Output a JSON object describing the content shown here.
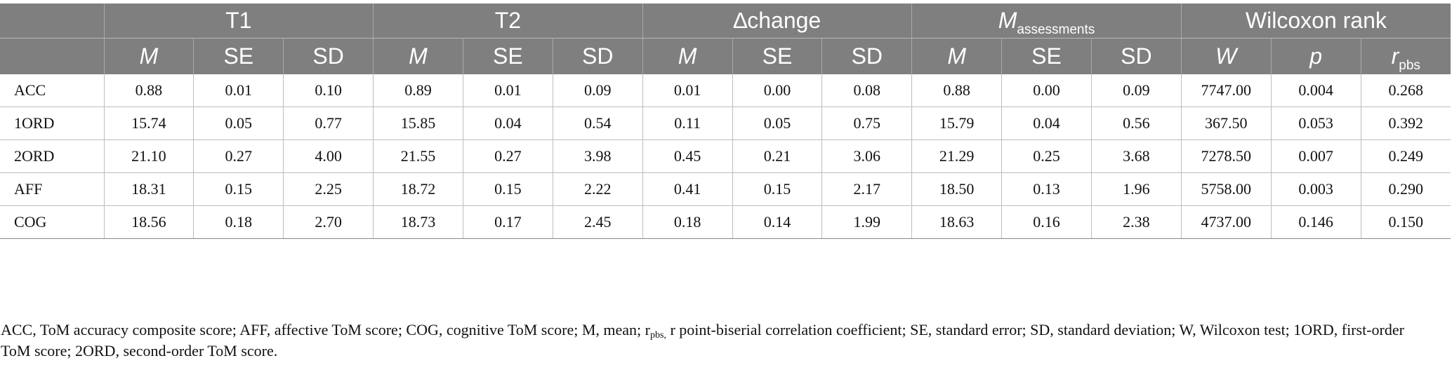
{
  "table": {
    "group_headers": [
      "T1",
      "T2",
      "∆change",
      "Wilcoxon rank"
    ],
    "m_assessments": {
      "base": "M",
      "sub": "assessments"
    },
    "sub_headers": {
      "M": "M",
      "SE": "SE",
      "SD": "SD",
      "W": "W",
      "p": "p",
      "r_base": "r",
      "r_sub": "pbs"
    },
    "rows": [
      {
        "label": "ACC",
        "values": [
          "0.88",
          "0.01",
          "0.10",
          "0.89",
          "0.01",
          "0.09",
          "0.01",
          "0.00",
          "0.08",
          "0.88",
          "0.00",
          "0.09",
          "7747.00",
          "0.004",
          "0.268"
        ]
      },
      {
        "label": "1ORD",
        "values": [
          "15.74",
          "0.05",
          "0.77",
          "15.85",
          "0.04",
          "0.54",
          "0.11",
          "0.05",
          "0.75",
          "15.79",
          "0.04",
          "0.56",
          "367.50",
          "0.053",
          "0.392"
        ]
      },
      {
        "label": "2ORD",
        "values": [
          "21.10",
          "0.27",
          "4.00",
          "21.55",
          "0.27",
          "3.98",
          "0.45",
          "0.21",
          "3.06",
          "21.29",
          "0.25",
          "3.68",
          "7278.50",
          "0.007",
          "0.249"
        ]
      },
      {
        "label": "AFF",
        "values": [
          "18.31",
          "0.15",
          "2.25",
          "18.72",
          "0.15",
          "2.22",
          "0.41",
          "0.15",
          "2.17",
          "18.50",
          "0.13",
          "1.96",
          "5758.00",
          "0.003",
          "0.290"
        ]
      },
      {
        "label": "COG",
        "values": [
          "18.56",
          "0.18",
          "2.70",
          "18.73",
          "0.17",
          "2.45",
          "0.18",
          "0.14",
          "1.99",
          "18.63",
          "0.16",
          "2.38",
          "4737.00",
          "0.146",
          "0.150"
        ]
      }
    ]
  },
  "footnote": {
    "part1": "ACC, ToM accuracy composite score; AFF, affective ToM score; COG, cognitive ToM score; M, mean; r",
    "sub": "pbs,",
    "part2": " r point-biserial correlation coefficient; SE, standard error; SD, standard deviation; W, Wilcoxon test; 1ORD, first-order ToM score; 2ORD, second-order ToM score."
  }
}
